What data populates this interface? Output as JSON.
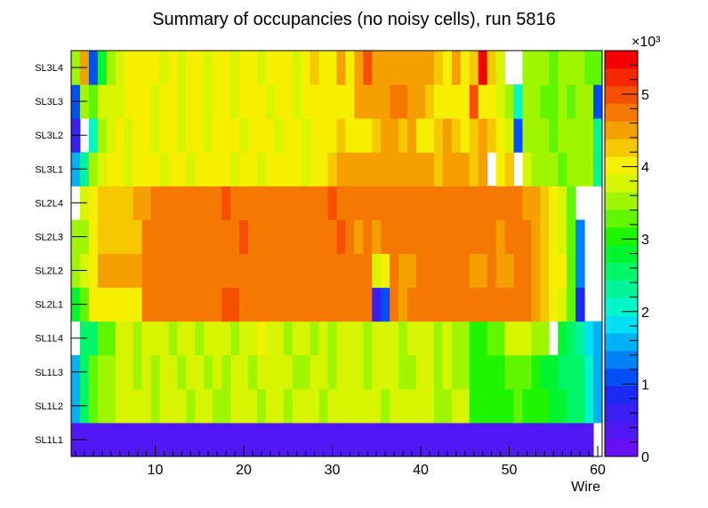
{
  "chart_data": {
    "type": "heatmap",
    "title": "Summary of occupancies (no noisy cells), run 5816",
    "xlabel": "Wire",
    "ylabel": "",
    "xlim": [
      0.5,
      60.5
    ],
    "x_ticks": [
      "10",
      "20",
      "30",
      "40",
      "50",
      "60"
    ],
    "x_tick_values": [
      10,
      20,
      30,
      40,
      50,
      60
    ],
    "rows": [
      "SL1L1",
      "SL1L2",
      "SL1L3",
      "SL1L4",
      "SL2L1",
      "SL2L2",
      "SL2L3",
      "SL2L4",
      "SL3L1",
      "SL3L2",
      "SL3L3",
      "SL3L4"
    ],
    "zlim": [
      0,
      5600
    ],
    "colorbar_exponent": "×10³",
    "colorbar_ticks": [
      "0",
      "1",
      "2",
      "3",
      "4",
      "5"
    ],
    "colorbar_tick_values": [
      0,
      1000,
      2000,
      3000,
      4000,
      5000
    ],
    "palette": [
      "#6a0ff5",
      "#5018f5",
      "#3a1ff5",
      "#1a2af5",
      "#0050f5",
      "#0080f5",
      "#00b0f5",
      "#00e0f5",
      "#00f5c8",
      "#00f598",
      "#00f568",
      "#00f530",
      "#20f500",
      "#60f500",
      "#a0f500",
      "#d8f500",
      "#f5f000",
      "#f5c800",
      "#f5a000",
      "#f57800",
      "#f55000",
      "#f52800",
      "#f50000"
    ],
    "values": [
      [
        400,
        400,
        400,
        400,
        400,
        400,
        400,
        400,
        400,
        400,
        400,
        400,
        400,
        400,
        400,
        400,
        400,
        400,
        400,
        400,
        400,
        400,
        400,
        400,
        400,
        400,
        400,
        400,
        400,
        400,
        400,
        400,
        400,
        400,
        400,
        400,
        400,
        400,
        400,
        400,
        400,
        400,
        400,
        400,
        400,
        400,
        400,
        400,
        400,
        400,
        400,
        400,
        400,
        400,
        400,
        400,
        400,
        400,
        400,
        null
      ],
      [
        1600,
        2500,
        3300,
        3500,
        3500,
        3700,
        3700,
        3700,
        3700,
        3500,
        3700,
        3700,
        3700,
        3500,
        3700,
        3700,
        3500,
        3500,
        3700,
        3700,
        3700,
        3600,
        3700,
        3700,
        3500,
        3700,
        3800,
        3700,
        3500,
        3700,
        3700,
        3800,
        3700,
        3700,
        3700,
        3600,
        3700,
        3700,
        3700,
        3800,
        3700,
        3600,
        3500,
        3700,
        3700,
        3100,
        3000,
        3100,
        3000,
        3100,
        3200,
        3000,
        3000,
        3000,
        2700,
        2700,
        2600,
        2600,
        2100,
        1600
      ],
      [
        1600,
        2600,
        3300,
        3600,
        3500,
        3700,
        3700,
        3500,
        3700,
        3500,
        3700,
        3700,
        3600,
        3700,
        3700,
        3500,
        3700,
        3600,
        3700,
        3700,
        3500,
        3700,
        3800,
        3700,
        3700,
        3600,
        3500,
        3700,
        3700,
        3500,
        3700,
        3800,
        3700,
        3600,
        3700,
        3700,
        3700,
        3500,
        3600,
        3700,
        3700,
        3500,
        3700,
        3600,
        3500,
        3000,
        3000,
        3100,
        3000,
        3200,
        3300,
        3300,
        3000,
        2800,
        2800,
        2600,
        2600,
        2500,
        2000,
        1600
      ],
      [
        null,
        2500,
        2600,
        3300,
        3300,
        3700,
        3700,
        3500,
        3700,
        3700,
        3700,
        3600,
        3700,
        3700,
        3500,
        3700,
        3700,
        3700,
        3500,
        3700,
        3800,
        4000,
        3700,
        3700,
        3500,
        3700,
        3700,
        3600,
        3700,
        3500,
        3700,
        3800,
        3700,
        3500,
        3700,
        3700,
        3700,
        3500,
        3700,
        3700,
        3700,
        3500,
        3700,
        3600,
        3500,
        3000,
        3000,
        3200,
        3300,
        3700,
        3700,
        3700,
        3500,
        3500,
        null,
        2700,
        2600,
        2200,
        1800,
        1500
      ],
      [
        2800,
        3200,
        4000,
        4000,
        4000,
        4000,
        4000,
        4000,
        4800,
        4800,
        4800,
        4800,
        4800,
        4800,
        4800,
        4800,
        4800,
        5000,
        5000,
        4800,
        4800,
        4800,
        4800,
        4800,
        4800,
        4800,
        4800,
        4800,
        4800,
        4800,
        4800,
        4800,
        4800,
        4800,
        700,
        1200,
        4800,
        4500,
        4800,
        4800,
        4800,
        4800,
        4800,
        4800,
        4800,
        4800,
        4800,
        4800,
        4800,
        4800,
        4800,
        4800,
        4500,
        4300,
        4000,
        3700,
        3200,
        900,
        null,
        null
      ],
      [
        3500,
        3700,
        4000,
        4500,
        4500,
        4500,
        4500,
        4500,
        4800,
        4800,
        4800,
        4800,
        4800,
        4800,
        4800,
        4800,
        4800,
        4800,
        4800,
        4800,
        4800,
        4800,
        4800,
        4800,
        4800,
        4800,
        4800,
        4800,
        4800,
        4800,
        4800,
        4800,
        4800,
        4800,
        3800,
        3900,
        4800,
        4500,
        4500,
        4800,
        4800,
        4800,
        4800,
        4800,
        4800,
        4500,
        4500,
        4800,
        4500,
        4500,
        4800,
        4800,
        4500,
        4300,
        4000,
        4000,
        3200,
        1300,
        null,
        null
      ],
      [
        3500,
        3500,
        4000,
        4300,
        4300,
        4300,
        4300,
        4300,
        4800,
        4800,
        4800,
        4800,
        4800,
        4800,
        4800,
        4800,
        4800,
        4800,
        4800,
        5000,
        4800,
        4800,
        4800,
        4800,
        4800,
        4800,
        4800,
        4800,
        4800,
        4800,
        5000,
        4800,
        4500,
        4800,
        4500,
        4800,
        4800,
        4800,
        4800,
        4800,
        4800,
        4800,
        4800,
        4800,
        4800,
        4800,
        4800,
        4800,
        4500,
        4800,
        4800,
        4800,
        4500,
        4300,
        4000,
        3800,
        3200,
        1300,
        null,
        null
      ],
      [
        null,
        3800,
        4000,
        4300,
        4300,
        4300,
        4300,
        4500,
        4500,
        4800,
        4800,
        4800,
        4800,
        4800,
        4800,
        4800,
        4800,
        5000,
        4800,
        4800,
        4800,
        4800,
        4800,
        4800,
        4800,
        4800,
        4800,
        4800,
        4800,
        5000,
        4800,
        4800,
        4800,
        4800,
        4800,
        4800,
        4800,
        4800,
        4800,
        4800,
        4800,
        4800,
        4800,
        4800,
        4800,
        4800,
        4800,
        4800,
        4800,
        4800,
        4800,
        4500,
        4500,
        4300,
        4000,
        3800,
        3200,
        null,
        null,
        null
      ],
      [
        1700,
        2400,
        3500,
        3800,
        4000,
        4000,
        3800,
        4000,
        4000,
        4000,
        3800,
        4000,
        4000,
        3800,
        4000,
        4000,
        4000,
        4000,
        3800,
        4000,
        4000,
        3800,
        4000,
        4000,
        4000,
        4000,
        3800,
        4000,
        4000,
        4300,
        4500,
        4500,
        4500,
        4500,
        4500,
        4500,
        4500,
        4500,
        4500,
        4500,
        4500,
        4300,
        4500,
        4500,
        4500,
        4300,
        4500,
        null,
        4000,
        4300,
        null,
        3800,
        3500,
        3500,
        3500,
        3300,
        3500,
        3500,
        3500,
        2200
      ],
      [
        700,
        null,
        2100,
        3500,
        3700,
        4000,
        3700,
        4000,
        4000,
        3700,
        4000,
        4000,
        3800,
        4000,
        4000,
        3700,
        4000,
        4000,
        4000,
        3800,
        4000,
        4000,
        4000,
        3700,
        4000,
        4000,
        3800,
        4000,
        4000,
        4000,
        4300,
        4000,
        4000,
        4000,
        4300,
        4500,
        4500,
        4300,
        4500,
        4000,
        4000,
        4300,
        4500,
        4300,
        4000,
        4300,
        4500,
        4300,
        4000,
        3700,
        1000,
        3500,
        3500,
        3500,
        3300,
        3500,
        3500,
        3500,
        3500,
        2200
      ],
      [
        1000,
        3500,
        3300,
        3700,
        3700,
        3800,
        4000,
        4000,
        4000,
        3800,
        4000,
        4000,
        3800,
        4000,
        4000,
        3800,
        4000,
        4000,
        3800,
        4000,
        4000,
        4000,
        3800,
        4000,
        4000,
        3800,
        4000,
        4000,
        4000,
        4000,
        4000,
        4000,
        4500,
        4500,
        4500,
        4500,
        4800,
        4800,
        4500,
        4500,
        4300,
        4000,
        4000,
        4000,
        4000,
        5000,
        4000,
        4000,
        3800,
        3500,
        2100,
        3500,
        3500,
        3300,
        3300,
        3500,
        3300,
        3500,
        3500,
        1000
      ],
      [
        3500,
        4500,
        1000,
        2800,
        3500,
        3800,
        4000,
        4000,
        4000,
        4000,
        3800,
        4000,
        3700,
        4000,
        4000,
        3800,
        4000,
        4000,
        3800,
        4000,
        4000,
        3800,
        4000,
        4000,
        4000,
        3700,
        4000,
        4300,
        4000,
        4000,
        4500,
        4000,
        4500,
        5000,
        4500,
        4500,
        4500,
        4500,
        4500,
        4500,
        4500,
        4300,
        4000,
        4500,
        4000,
        4300,
        5600,
        4300,
        3800,
        null,
        null,
        3500,
        3500,
        3500,
        3300,
        3500,
        3500,
        3500,
        3300,
        3300
      ]
    ]
  }
}
